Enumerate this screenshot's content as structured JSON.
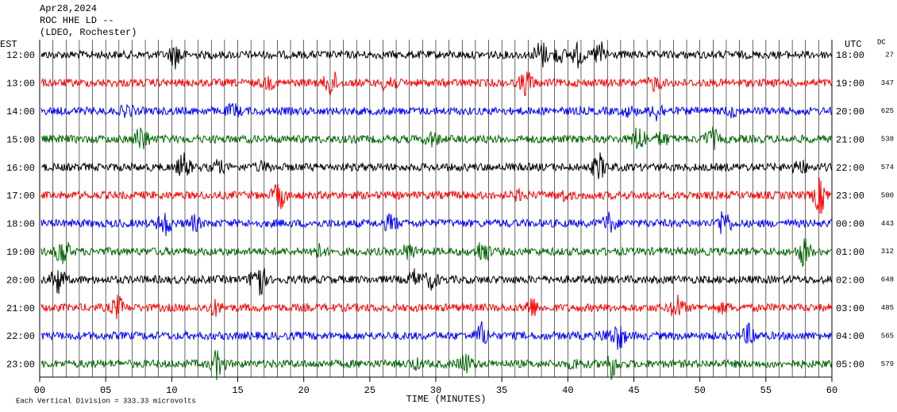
{
  "chart_data": {
    "type": "helicorder",
    "title_lines": [
      "Apr28,2024",
      "ROC HHE LD --",
      "(LDEO, Rochester)"
    ],
    "left_label": "EST",
    "right_label": "UTC",
    "dc_label": "DC",
    "xlabel": "TIME (MINUTES)",
    "footnote": "Each Vertical Division =  333.33 microvolts",
    "xlim": [
      0,
      60
    ],
    "xticks": [
      {
        "value": 0,
        "label": "00"
      },
      {
        "value": 5,
        "label": "05"
      },
      10,
      15,
      20,
      25,
      30,
      35,
      40,
      45,
      50,
      55,
      60
    ],
    "rows": [
      {
        "est": "12:00",
        "utc": "18:00",
        "dc": 27,
        "color": "#000000"
      },
      {
        "est": "13:00",
        "utc": "19:00",
        "dc": 347,
        "color": "#ff0000"
      },
      {
        "est": "14:00",
        "utc": "20:00",
        "dc": 625,
        "color": "#0000ff"
      },
      {
        "est": "15:00",
        "utc": "21:00",
        "dc": 538,
        "color": "#006400"
      },
      {
        "est": "16:00",
        "utc": "22:00",
        "dc": 574,
        "color": "#000000"
      },
      {
        "est": "17:00",
        "utc": "23:00",
        "dc": 500,
        "color": "#ff0000"
      },
      {
        "est": "18:00",
        "utc": "00:00",
        "dc": 443,
        "color": "#0000ff"
      },
      {
        "est": "19:00",
        "utc": "01:00",
        "dc": 312,
        "color": "#006400"
      },
      {
        "est": "20:00",
        "utc": "02:00",
        "dc": 648,
        "color": "#000000"
      },
      {
        "est": "21:00",
        "utc": "03:00",
        "dc": 485,
        "color": "#ff0000"
      },
      {
        "est": "22:00",
        "utc": "04:00",
        "dc": 565,
        "color": "#0000ff"
      },
      {
        "est": "23:00",
        "utc": "05:00",
        "dc": 579,
        "color": "#006400"
      }
    ]
  }
}
